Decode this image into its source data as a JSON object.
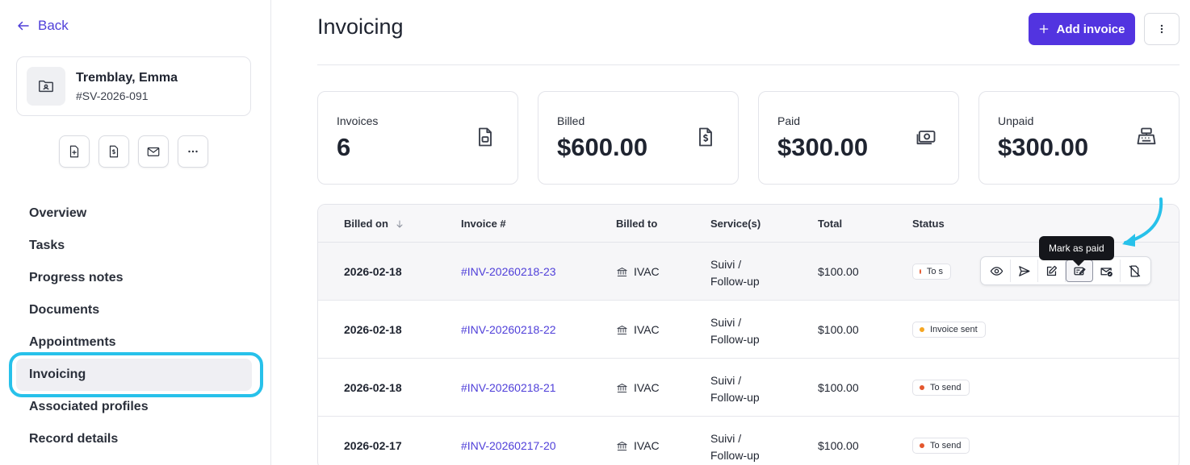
{
  "sidebar": {
    "back_label": "Back",
    "profile": {
      "name": "Tremblay, Emma",
      "id": "#SV-2026-091"
    },
    "quick_actions": [
      "new-document-icon",
      "invoice-icon",
      "mail-icon",
      "more-horizontal-icon"
    ],
    "nav": [
      {
        "label": "Overview"
      },
      {
        "label": "Tasks"
      },
      {
        "label": "Progress notes"
      },
      {
        "label": "Documents"
      },
      {
        "label": "Appointments"
      },
      {
        "label": "Invoicing",
        "active": true
      },
      {
        "label": "Associated profiles"
      },
      {
        "label": "Record details"
      }
    ]
  },
  "header": {
    "title": "Invoicing",
    "add_label": "Add invoice"
  },
  "stats": [
    {
      "label": "Invoices",
      "value": "6",
      "icon": "document-icon"
    },
    {
      "label": "Billed",
      "value": "$600.00",
      "icon": "invoice-dollar-icon"
    },
    {
      "label": "Paid",
      "value": "$300.00",
      "icon": "cash-icon"
    },
    {
      "label": "Unpaid",
      "value": "$300.00",
      "icon": "cash-register-icon"
    }
  ],
  "table": {
    "columns": [
      "Billed on",
      "Invoice #",
      "Billed to",
      "Service(s)",
      "Total",
      "Status"
    ],
    "rows": [
      {
        "date": "2026-02-18",
        "invoice": "#INV-20260218-23",
        "billed_to": "IVAC",
        "service_line1": "Suivi /",
        "service_line2": "Follow-up",
        "total": "$100.00",
        "status": "To s"
      },
      {
        "date": "2026-02-18",
        "invoice": "#INV-20260218-22",
        "billed_to": "IVAC",
        "service_line1": "Suivi /",
        "service_line2": "Follow-up",
        "total": "$100.00",
        "status": "Invoice sent"
      },
      {
        "date": "2026-02-18",
        "invoice": "#INV-20260218-21",
        "billed_to": "IVAC",
        "service_line1": "Suivi /",
        "service_line2": "Follow-up",
        "total": "$100.00",
        "status": "To send"
      },
      {
        "date": "2026-02-17",
        "invoice": "#INV-20260217-20",
        "billed_to": "IVAC",
        "service_line1": "Suivi /",
        "service_line2": "Follow-up",
        "total": "$100.00",
        "status": "To send"
      }
    ],
    "row_actions": [
      "view-icon",
      "send-icon",
      "edit-icon",
      "mark-paid-icon",
      "mail-check-icon",
      "void-icon"
    ],
    "tooltip": "Mark as paid"
  },
  "colors": {
    "accent": "#5234e0",
    "link": "#4f3fd9",
    "highlight": "#27c1ea",
    "status_to_send": "#e4572e",
    "status_sent": "#f5a623"
  }
}
